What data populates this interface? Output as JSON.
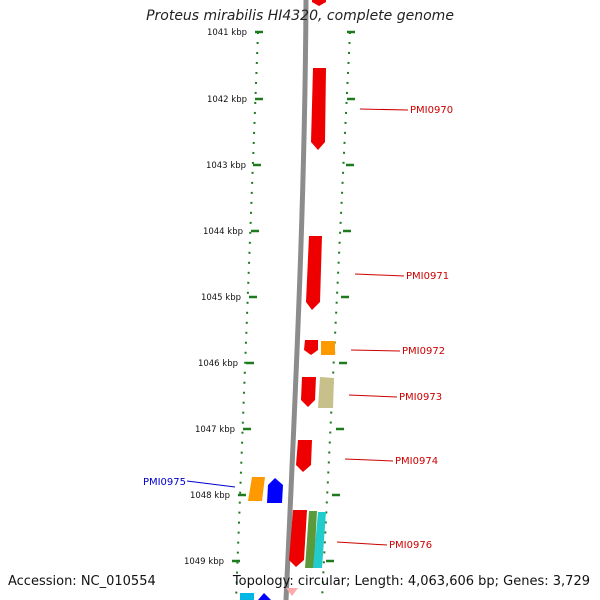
{
  "title": "Proteus mirabilis HI4320, complete genome",
  "footer": {
    "accession": "Accession: NC_010554",
    "summary": "Topology: circular; Length: 4,063,606 bp; Genes: 3,729"
  },
  "colors": {
    "background": "#ffffff",
    "backbone": "#8c8c8c",
    "tick": "#1f7a1f",
    "forward_gene_label": "#cc0000",
    "reverse_gene_label": "#0000cc",
    "gene_red": "#ee0000",
    "gene_orange": "#ff9900",
    "gene_olive": "#c8c08a",
    "gene_blue": "#0000ff",
    "gene_cyan": "#22cccc",
    "gene_green": "#5a9a3a",
    "gene_pink": "#ffaaaa"
  },
  "kbp_ticks": [
    "1041 kbp",
    "1042 kbp",
    "1043 kbp",
    "1044 kbp",
    "1045 kbp",
    "1046 kbp",
    "1047 kbp",
    "1048 kbp",
    "1049 kbp"
  ],
  "gene_labels": [
    {
      "text": "PMI0970",
      "strand": "forward"
    },
    {
      "text": "PMI0971",
      "strand": "forward"
    },
    {
      "text": "PMI0972",
      "strand": "forward"
    },
    {
      "text": "PMI0973",
      "strand": "forward"
    },
    {
      "text": "PMI0974",
      "strand": "forward"
    },
    {
      "text": "PMI0975",
      "strand": "reverse"
    },
    {
      "text": "PMI0976",
      "strand": "forward"
    }
  ]
}
